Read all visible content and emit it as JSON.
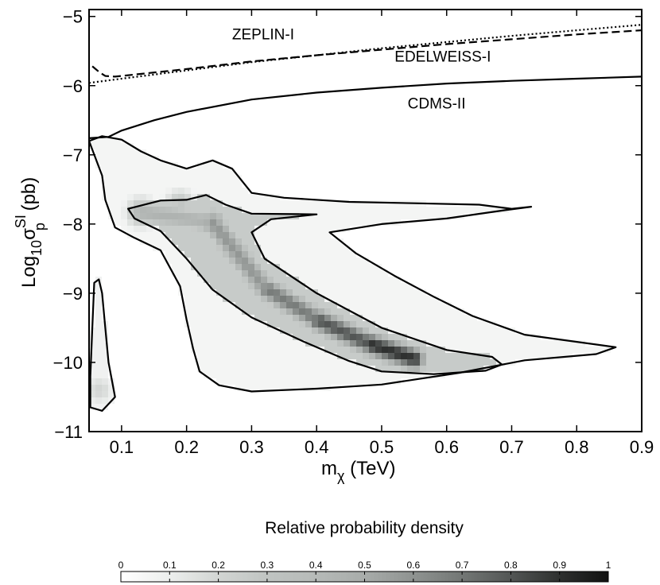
{
  "chart_data": {
    "type": "heatmap",
    "title": "",
    "xlabel": "m_χ (TeV)",
    "ylabel": "Log10σpSI (pb)",
    "xlabel_parts": {
      "main": "m",
      "sub": "χ",
      "rest": " (TeV)"
    },
    "ylabel_parts": {
      "pre": "Log",
      "sub": "10",
      "sigma": "σ",
      "sup": "SI",
      "subp": "p",
      "rest": " (pb)"
    },
    "xlim": [
      0.05,
      0.9
    ],
    "ylim": [
      -11,
      -4.9
    ],
    "xticks": [
      0.1,
      0.2,
      0.3,
      0.4,
      0.5,
      0.6,
      0.7,
      0.8,
      0.9
    ],
    "xtick_labels": [
      "0.1",
      "0.2",
      "0.3",
      "0.4",
      "0.5",
      "0.6",
      "0.7",
      "0.8",
      "0.9"
    ],
    "yticks": [
      -11,
      -10,
      -9,
      -8,
      -7,
      -6,
      -5
    ],
    "ytick_labels": [
      "−11",
      "−10",
      "−9",
      "−8",
      "−7",
      "−6",
      "−5"
    ],
    "limit_curves": [
      {
        "name": "ZEPLIN-I",
        "style": "dotted",
        "points": [
          [
            0.05,
            -5.96
          ],
          [
            0.1,
            -5.9
          ],
          [
            0.2,
            -5.78
          ],
          [
            0.3,
            -5.66
          ],
          [
            0.4,
            -5.56
          ],
          [
            0.5,
            -5.46
          ],
          [
            0.6,
            -5.37
          ],
          [
            0.7,
            -5.28
          ],
          [
            0.8,
            -5.2
          ],
          [
            0.9,
            -5.12
          ]
        ]
      },
      {
        "name": "EDELWEISS-I",
        "style": "dashed",
        "points": [
          [
            0.055,
            -5.72
          ],
          [
            0.065,
            -5.8
          ],
          [
            0.075,
            -5.86
          ],
          [
            0.09,
            -5.87
          ],
          [
            0.12,
            -5.84
          ],
          [
            0.2,
            -5.76
          ],
          [
            0.3,
            -5.65
          ],
          [
            0.4,
            -5.56
          ],
          [
            0.5,
            -5.48
          ],
          [
            0.6,
            -5.4
          ],
          [
            0.7,
            -5.33
          ],
          [
            0.8,
            -5.26
          ],
          [
            0.9,
            -5.2
          ]
        ]
      },
      {
        "name": "CDMS-II",
        "style": "solid",
        "points": [
          [
            0.05,
            -6.76
          ],
          [
            0.08,
            -6.74
          ],
          [
            0.1,
            -6.65
          ],
          [
            0.15,
            -6.5
          ],
          [
            0.2,
            -6.38
          ],
          [
            0.3,
            -6.2
          ],
          [
            0.4,
            -6.1
          ],
          [
            0.5,
            -6.03
          ],
          [
            0.6,
            -5.97
          ],
          [
            0.7,
            -5.93
          ],
          [
            0.8,
            -5.9
          ],
          [
            0.9,
            -5.87
          ]
        ]
      }
    ],
    "annotations": [
      {
        "text": "ZEPLIN-I",
        "x": 0.27,
        "y": -5.33
      },
      {
        "text": "EDELWEISS-I",
        "x": 0.52,
        "y": -5.65
      },
      {
        "text": "CDMS-II",
        "x": 0.54,
        "y": -6.33
      }
    ],
    "contours": [
      {
        "level": "outer",
        "points": [
          [
            0.05,
            -6.8
          ],
          [
            0.07,
            -6.73
          ],
          [
            0.1,
            -6.78
          ],
          [
            0.13,
            -6.95
          ],
          [
            0.16,
            -7.08
          ],
          [
            0.2,
            -7.2
          ],
          [
            0.24,
            -7.08
          ],
          [
            0.27,
            -7.2
          ],
          [
            0.3,
            -7.55
          ],
          [
            0.35,
            -7.62
          ],
          [
            0.45,
            -7.68
          ],
          [
            0.55,
            -7.7
          ],
          [
            0.65,
            -7.72
          ],
          [
            0.7,
            -7.78
          ],
          [
            0.73,
            -7.75
          ],
          [
            0.69,
            -7.8
          ],
          [
            0.6,
            -7.92
          ],
          [
            0.5,
            -8.0
          ],
          [
            0.42,
            -8.12
          ],
          [
            0.46,
            -8.42
          ],
          [
            0.52,
            -8.75
          ],
          [
            0.58,
            -9.05
          ],
          [
            0.64,
            -9.33
          ],
          [
            0.72,
            -9.6
          ],
          [
            0.86,
            -9.78
          ],
          [
            0.83,
            -9.88
          ],
          [
            0.72,
            -9.97
          ],
          [
            0.62,
            -10.15
          ],
          [
            0.5,
            -10.32
          ],
          [
            0.4,
            -10.38
          ],
          [
            0.3,
            -10.42
          ],
          [
            0.25,
            -10.33
          ],
          [
            0.22,
            -10.13
          ],
          [
            0.21,
            -9.8
          ],
          [
            0.2,
            -9.38
          ],
          [
            0.19,
            -8.9
          ],
          [
            0.16,
            -8.38
          ],
          [
            0.12,
            -8.2
          ],
          [
            0.09,
            -8.05
          ],
          [
            0.075,
            -7.65
          ],
          [
            0.07,
            -7.3
          ],
          [
            0.05,
            -6.8
          ]
        ]
      },
      {
        "level": "inner",
        "points": [
          [
            0.11,
            -7.78
          ],
          [
            0.16,
            -7.66
          ],
          [
            0.2,
            -7.65
          ],
          [
            0.23,
            -7.58
          ],
          [
            0.26,
            -7.72
          ],
          [
            0.3,
            -7.85
          ],
          [
            0.4,
            -7.86
          ],
          [
            0.33,
            -7.93
          ],
          [
            0.3,
            -8.12
          ],
          [
            0.32,
            -8.5
          ],
          [
            0.4,
            -9.0
          ],
          [
            0.5,
            -9.5
          ],
          [
            0.6,
            -9.82
          ],
          [
            0.67,
            -9.92
          ],
          [
            0.685,
            -10.03
          ],
          [
            0.66,
            -10.12
          ],
          [
            0.58,
            -10.17
          ],
          [
            0.5,
            -10.13
          ],
          [
            0.45,
            -9.98
          ],
          [
            0.38,
            -9.7
          ],
          [
            0.3,
            -9.35
          ],
          [
            0.24,
            -8.95
          ],
          [
            0.2,
            -8.5
          ],
          [
            0.16,
            -8.1
          ],
          [
            0.12,
            -7.92
          ],
          [
            0.11,
            -7.78
          ]
        ]
      },
      {
        "level": "outer-island",
        "points": [
          [
            0.052,
            -10.65
          ],
          [
            0.07,
            -10.7
          ],
          [
            0.09,
            -10.5
          ],
          [
            0.08,
            -10.0
          ],
          [
            0.075,
            -9.5
          ],
          [
            0.07,
            -9.0
          ],
          [
            0.065,
            -8.8
          ],
          [
            0.058,
            -8.85
          ],
          [
            0.055,
            -9.5
          ],
          [
            0.052,
            -10.2
          ],
          [
            0.052,
            -10.65
          ]
        ]
      }
    ],
    "density_peaks": [
      {
        "x": 0.55,
        "y": -9.95,
        "value": 0.95
      },
      {
        "x": 0.48,
        "y": -9.73,
        "value": 0.85
      },
      {
        "x": 0.4,
        "y": -9.38,
        "value": 0.75
      },
      {
        "x": 0.32,
        "y": -8.92,
        "value": 0.62
      },
      {
        "x": 0.24,
        "y": -7.98,
        "value": 0.55
      },
      {
        "x": 0.13,
        "y": -7.83,
        "value": 0.35
      },
      {
        "x": 0.19,
        "y": -7.72,
        "value": 0.3
      },
      {
        "x": 0.065,
        "y": -10.4,
        "value": 0.2
      }
    ],
    "colorbar": {
      "title": "Relative probability density",
      "ticks": [
        "0",
        "0.1",
        "0.2",
        "0.3",
        "0.4",
        "0.5",
        "0.6",
        "0.7",
        "0.8",
        "0.9",
        "1"
      ],
      "range": [
        0,
        1
      ],
      "low_color": "#ffffff",
      "high_color": "#111111"
    }
  }
}
